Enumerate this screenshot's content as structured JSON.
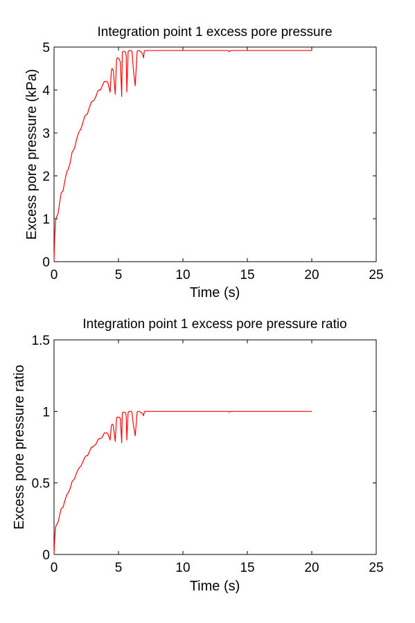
{
  "chart_data": [
    {
      "type": "line",
      "title": "Integration point 1 excess pore pressure",
      "xlabel": "Time (s)",
      "ylabel": "Excess pore pressure (kPa)",
      "xlim": [
        0,
        25
      ],
      "ylim": [
        0,
        5
      ],
      "xticks": [
        0,
        5,
        10,
        15,
        20,
        25
      ],
      "yticks": [
        0,
        1,
        2,
        3,
        4,
        5
      ],
      "xtick_labels": [
        "0",
        "5",
        "10",
        "15",
        "20",
        "25"
      ],
      "ytick_labels": [
        "0",
        "1",
        "2",
        "3",
        "4",
        "5"
      ],
      "grid": false,
      "color": "#ff0000",
      "series": [
        {
          "x": [
            0,
            0.05,
            0.12,
            0.2,
            0.3,
            0.45,
            0.55,
            0.7,
            0.85,
            1.0,
            1.1,
            1.25,
            1.4,
            1.5,
            1.6,
            1.75,
            1.9,
            2.0,
            2.1,
            2.25,
            2.4,
            2.5,
            2.6,
            2.75,
            2.9,
            3.0,
            3.1,
            3.25,
            3.4,
            3.5,
            3.6,
            3.75,
            3.9,
            4.0,
            4.1,
            4.2,
            4.35,
            4.45,
            4.5,
            4.55,
            4.6,
            4.75,
            4.85,
            4.9,
            4.95,
            5.05,
            5.15,
            5.25,
            5.3,
            5.35,
            5.45,
            5.55,
            5.6,
            5.65,
            5.75,
            5.85,
            5.95,
            6.0,
            6.05,
            6.15,
            6.3,
            6.45,
            6.5,
            6.55,
            6.6,
            6.7,
            6.85,
            6.95,
            7.0,
            7.05,
            7.1,
            7.2,
            7.5,
            10,
            13.5,
            13.6,
            13.7,
            15,
            20
          ],
          "y": [
            0,
            0.55,
            0.95,
            1.05,
            1.1,
            1.4,
            1.6,
            1.65,
            1.9,
            2.1,
            2.15,
            2.3,
            2.55,
            2.6,
            2.65,
            2.85,
            3.0,
            3.05,
            3.1,
            3.25,
            3.4,
            3.42,
            3.45,
            3.6,
            3.72,
            3.74,
            3.76,
            3.85,
            3.98,
            4.0,
            4.0,
            4.1,
            4.2,
            4.2,
            4.2,
            4.15,
            3.95,
            4.45,
            4.5,
            4.48,
            4.45,
            3.9,
            4.7,
            4.75,
            4.75,
            4.72,
            4.65,
            3.85,
            4.88,
            4.9,
            4.9,
            4.88,
            4.8,
            3.95,
            4.9,
            4.92,
            4.92,
            4.92,
            4.9,
            4.5,
            4.1,
            4.9,
            4.92,
            4.92,
            4.92,
            4.9,
            4.85,
            4.75,
            4.9,
            4.92,
            4.92,
            4.92,
            4.92,
            4.92,
            4.92,
            4.89,
            4.92,
            4.92,
            4.92
          ]
        }
      ]
    },
    {
      "type": "line",
      "title": "Integration point 1 excess pore pressure ratio",
      "xlabel": "Time (s)",
      "ylabel": "Excess pore pressure ratio",
      "xlim": [
        0,
        25
      ],
      "ylim": [
        0,
        1.5
      ],
      "xticks": [
        0,
        5,
        10,
        15,
        20,
        25
      ],
      "yticks": [
        0,
        0.5,
        1,
        1.5
      ],
      "xtick_labels": [
        "0",
        "5",
        "10",
        "15",
        "20",
        "25"
      ],
      "ytick_labels": [
        "0",
        "0.5",
        "1",
        "1.5"
      ],
      "grid": false,
      "color": "#ff0000",
      "series": [
        {
          "x": [
            0,
            0.05,
            0.12,
            0.2,
            0.3,
            0.45,
            0.55,
            0.7,
            0.85,
            1.0,
            1.1,
            1.25,
            1.4,
            1.5,
            1.6,
            1.75,
            1.9,
            2.0,
            2.1,
            2.25,
            2.4,
            2.5,
            2.6,
            2.75,
            2.9,
            3.0,
            3.1,
            3.25,
            3.4,
            3.5,
            3.6,
            3.75,
            3.9,
            4.0,
            4.1,
            4.2,
            4.35,
            4.45,
            4.5,
            4.55,
            4.6,
            4.75,
            4.85,
            4.9,
            4.95,
            5.05,
            5.15,
            5.25,
            5.3,
            5.35,
            5.45,
            5.55,
            5.6,
            5.65,
            5.75,
            5.85,
            5.95,
            6.0,
            6.05,
            6.15,
            6.3,
            6.45,
            6.5,
            6.55,
            6.6,
            6.7,
            6.85,
            6.95,
            7.0,
            7.05,
            7.1,
            7.2,
            7.5,
            10,
            13.5,
            13.6,
            13.7,
            15,
            20
          ],
          "y": [
            0,
            0.11,
            0.19,
            0.21,
            0.22,
            0.28,
            0.32,
            0.33,
            0.38,
            0.42,
            0.43,
            0.46,
            0.51,
            0.52,
            0.53,
            0.57,
            0.6,
            0.61,
            0.62,
            0.65,
            0.68,
            0.69,
            0.69,
            0.72,
            0.75,
            0.75,
            0.76,
            0.77,
            0.8,
            0.81,
            0.81,
            0.82,
            0.85,
            0.85,
            0.85,
            0.84,
            0.8,
            0.9,
            0.91,
            0.91,
            0.9,
            0.79,
            0.95,
            0.96,
            0.96,
            0.96,
            0.95,
            0.78,
            0.99,
            0.995,
            0.995,
            0.99,
            0.97,
            0.8,
            0.995,
            1.0,
            1.0,
            1.0,
            0.99,
            0.91,
            0.83,
            0.995,
            1.0,
            1.0,
            1.0,
            0.995,
            0.985,
            0.97,
            0.995,
            1.0,
            1.0,
            1.0,
            1.0,
            1.0,
            1.0,
            0.995,
            1.0,
            1.0,
            1.0
          ]
        }
      ]
    }
  ]
}
